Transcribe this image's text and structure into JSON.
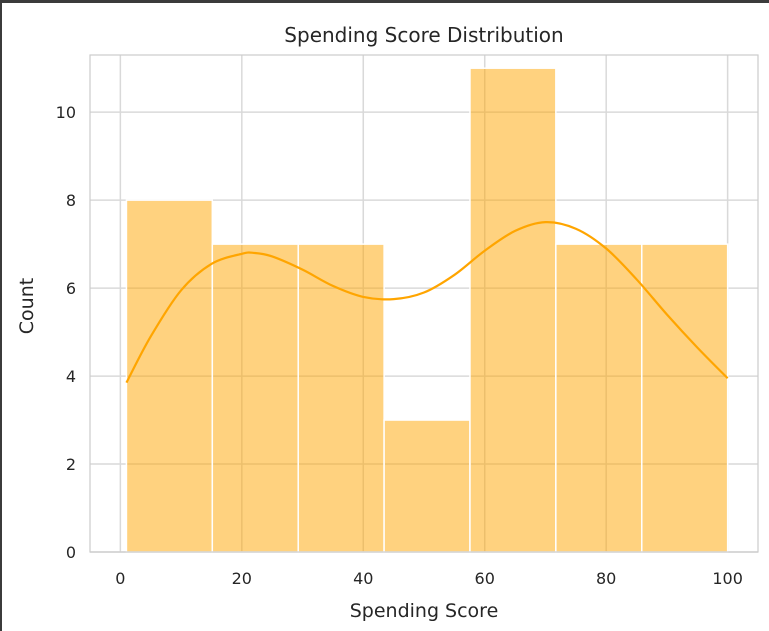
{
  "chart_data": {
    "type": "histogram",
    "title": "Spending Score Distribution",
    "xlabel": "Spending Score",
    "ylabel": "Count",
    "bin_edges": [
      1,
      15.14,
      29.29,
      43.43,
      57.57,
      71.71,
      85.86,
      100
    ],
    "counts": [
      8,
      7,
      7,
      3,
      11,
      7,
      7
    ],
    "kde": {
      "x": [
        1,
        5,
        10,
        15,
        20,
        22,
        25,
        30,
        35,
        40,
        45,
        50,
        55,
        60,
        65,
        70,
        75,
        80,
        85,
        90,
        95,
        100
      ],
      "y": [
        3.85,
        4.9,
        5.95,
        6.55,
        6.78,
        6.8,
        6.72,
        6.42,
        6.05,
        5.8,
        5.75,
        5.9,
        6.3,
        6.85,
        7.3,
        7.5,
        7.35,
        6.9,
        6.2,
        5.4,
        4.65,
        3.95
      ]
    },
    "xlim": [
      -5,
      105
    ],
    "ylim": [
      0,
      11.3
    ],
    "xticks": [
      0,
      20,
      40,
      60,
      80,
      100
    ],
    "yticks": [
      0,
      2,
      4,
      6,
      8,
      10
    ],
    "grid": true,
    "bar_color": "#ffa500",
    "bar_opacity": 0.5,
    "line_color": "#ffa500"
  }
}
